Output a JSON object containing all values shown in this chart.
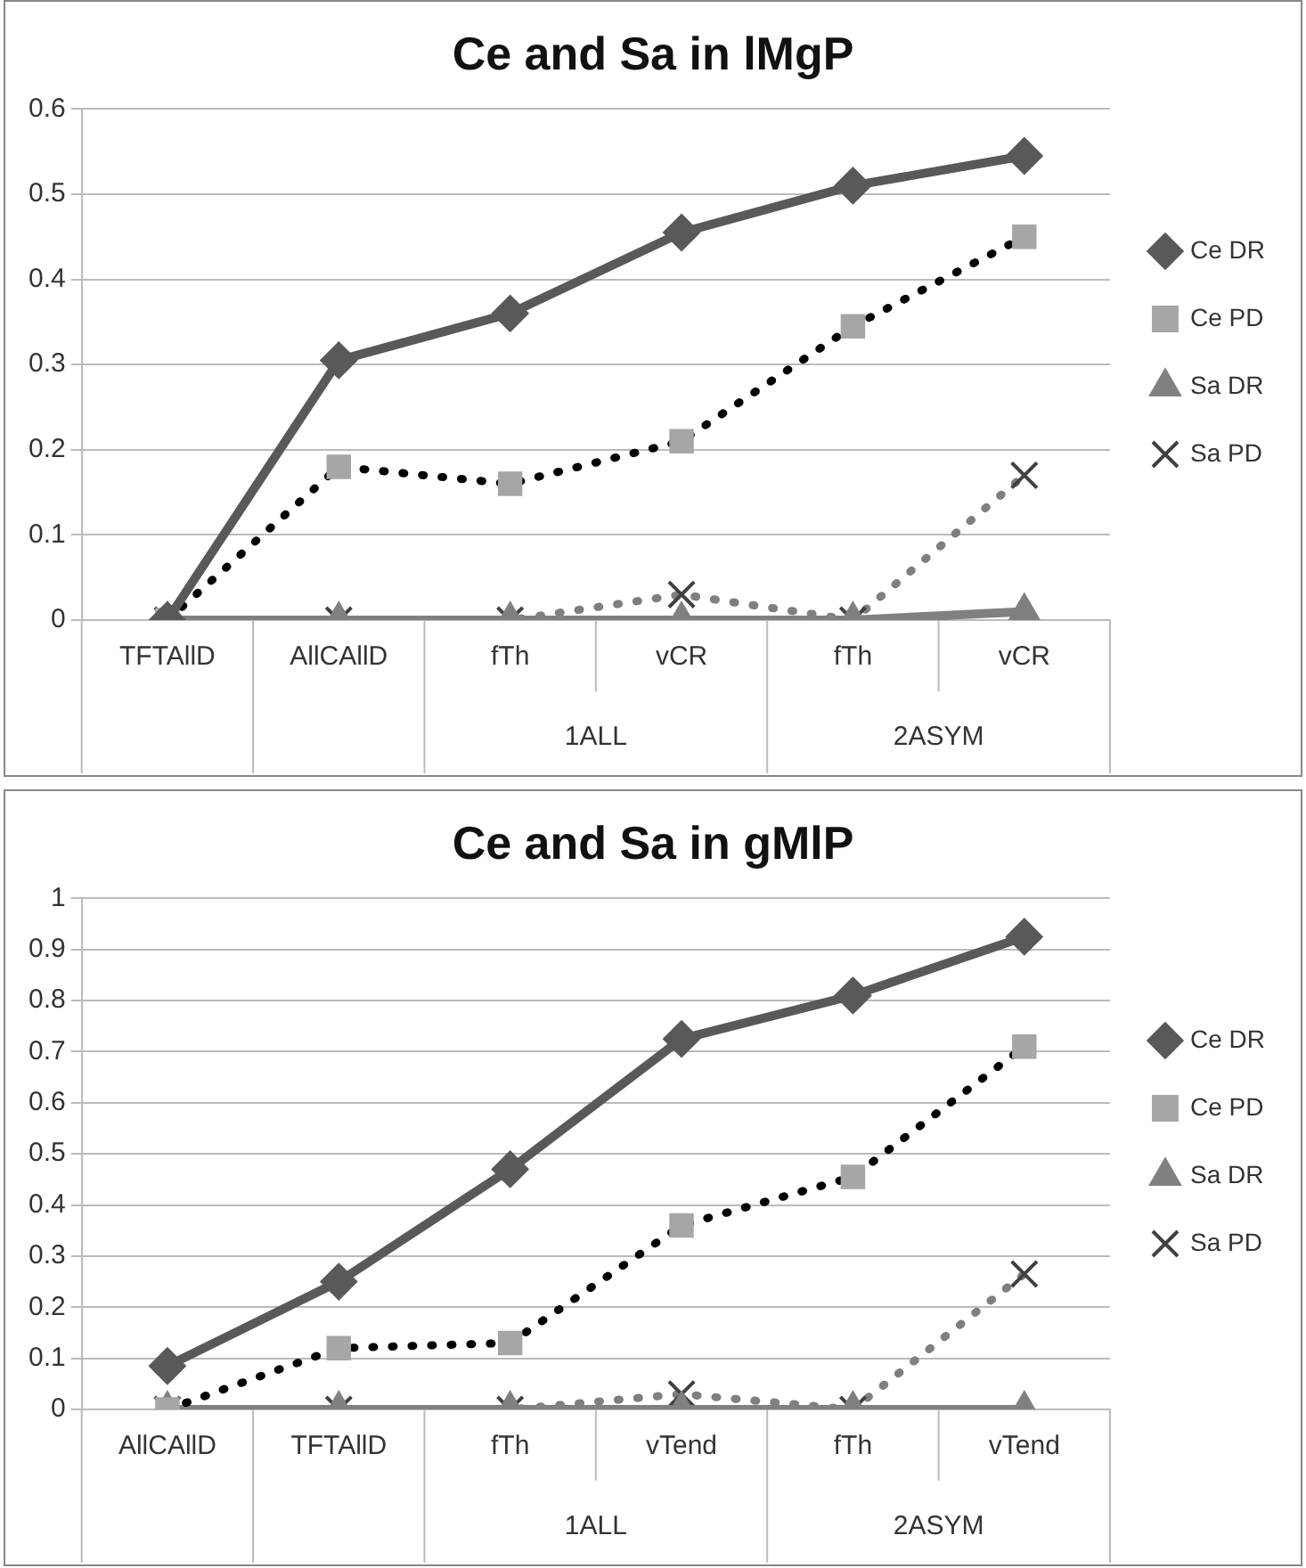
{
  "chart_data": [
    {
      "type": "line",
      "title": "Ce and Sa in lMgP",
      "categories": [
        "TFTAllD",
        "AllCAllD",
        "fTh",
        "vCR",
        "fTh",
        "vCR"
      ],
      "annotations": [
        "1ALL",
        "2ASYM"
      ],
      "ylim": [
        0,
        0.6
      ],
      "yticks": [
        0,
        0.1,
        0.2,
        0.3,
        0.4,
        0.5,
        0.6
      ],
      "grid": "y",
      "legend": "right",
      "series": [
        {
          "name": "Ce DR",
          "color": "#595959",
          "marker": "diamond",
          "line_style": "solid",
          "values": [
            0,
            0.305,
            0.36,
            0.455,
            0.51,
            0.545
          ]
        },
        {
          "name": "Ce PD",
          "color": "#000000",
          "colors": [
            "#a6a6a6",
            "#a6a6a6",
            "#a6a6a6",
            "#a6a6a6",
            "#a6a6a6",
            "#a6a6a6"
          ],
          "marker": "square",
          "line_style": "dotted",
          "values": [
            0,
            0.18,
            0.16,
            0.21,
            0.345,
            0.45
          ]
        },
        {
          "name": "Sa DR",
          "color": "#808080",
          "marker": "triangle",
          "line_style": "solid",
          "values": [
            0,
            0,
            0,
            0,
            0,
            0.01
          ]
        },
        {
          "name": "Sa PD",
          "color": "#7f7f7f",
          "colors": [
            "#404040",
            "#404040",
            "#404040",
            "#404040",
            "#404040",
            "#404040"
          ],
          "marker": "cross",
          "line_style": "dotted",
          "values": [
            0,
            0,
            0,
            0.03,
            0,
            0.17
          ]
        }
      ]
    },
    {
      "type": "line",
      "title": "Ce and Sa in gMlP",
      "categories": [
        "AllCAllD",
        "TFTAllD",
        "fTh",
        "vTend",
        "fTh",
        "vTend"
      ],
      "annotations": [
        "1ALL",
        "2ASYM"
      ],
      "ylim": [
        0,
        1
      ],
      "yticks": [
        0,
        0.1,
        0.2,
        0.3,
        0.4,
        0.5,
        0.6,
        0.7,
        0.8,
        0.9,
        1
      ],
      "grid": "y",
      "legend": "right",
      "series": [
        {
          "name": "Ce DR",
          "color": "#595959",
          "marker": "diamond",
          "line_style": "solid",
          "values": [
            0.085,
            0.25,
            0.47,
            0.725,
            0.81,
            0.925
          ]
        },
        {
          "name": "Ce PD",
          "color": "#000000",
          "colors": [
            "#a6a6a6",
            "#a6a6a6",
            "#a6a6a6",
            "#a6a6a6",
            "#a6a6a6",
            "#a6a6a6"
          ],
          "marker": "square",
          "line_style": "dotted",
          "values": [
            0,
            0.12,
            0.13,
            0.36,
            0.455,
            0.71
          ]
        },
        {
          "name": "Sa DR",
          "color": "#808080",
          "marker": "triangle",
          "line_style": "solid",
          "values": [
            0,
            0,
            0,
            0,
            0,
            0
          ]
        },
        {
          "name": "Sa PD",
          "color": "#7f7f7f",
          "colors": [
            "#404040",
            "#404040",
            "#404040",
            "#404040",
            "#404040",
            "#404040"
          ],
          "marker": "cross",
          "line_style": "dotted",
          "values": [
            0,
            0,
            0,
            0.03,
            0,
            0.265
          ]
        }
      ]
    }
  ]
}
